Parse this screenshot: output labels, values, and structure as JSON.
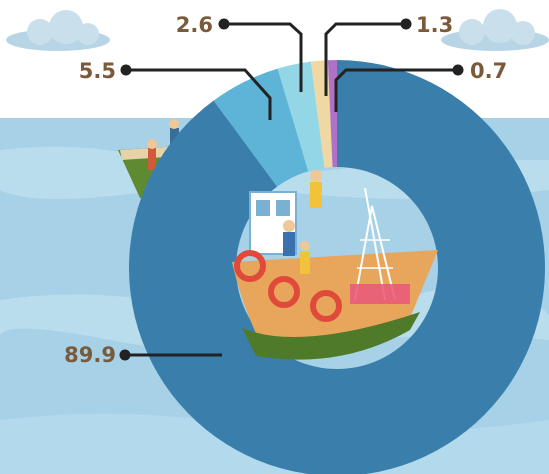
{
  "chart_data": {
    "type": "pie",
    "variant": "donut",
    "values": [
      89.9,
      5.5,
      2.6,
      1.3,
      0.7
    ],
    "labels": [
      "89.9",
      "5.5",
      "2.6",
      "1.3",
      "0.7"
    ],
    "colors": [
      "#3a7fab",
      "#5db4d6",
      "#93d6e6",
      "#efd8a3",
      "#b072c8"
    ],
    "title": "",
    "legend": "none"
  },
  "colors": {
    "sky": "#ffffff",
    "sea": "#9fcde6",
    "label_text": "#7a5a3a",
    "leader_line": "#222222"
  }
}
